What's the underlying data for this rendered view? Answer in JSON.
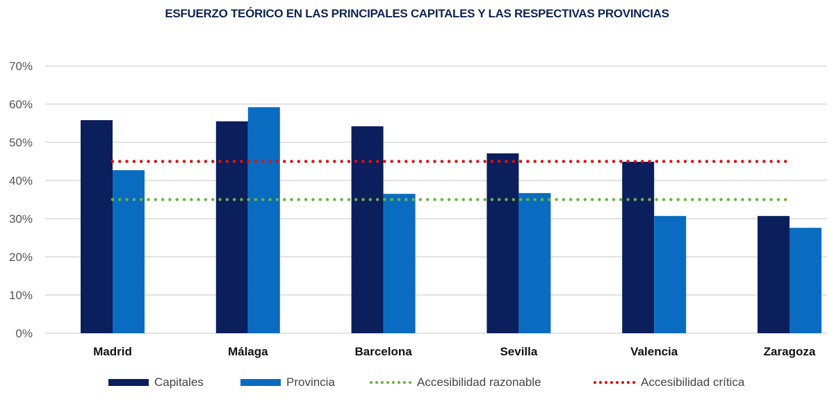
{
  "chart_data": {
    "type": "bar",
    "title": "ESFUERZO TEÓRICO EN LAS PRINCIPALES CAPITALES Y LAS RESPECTIVAS PROVINCIAS",
    "categories": [
      "Madrid",
      "Málaga",
      "Barcelona",
      "Sevilla",
      "Valencia",
      "Zaragoza"
    ],
    "series": [
      {
        "name": "Capitales",
        "values": [
          55.8,
          55.5,
          54.2,
          47.1,
          44.9,
          30.7
        ],
        "color": "#0b1f5c"
      },
      {
        "name": "Provincia",
        "values": [
          42.7,
          59.2,
          36.5,
          36.7,
          30.7,
          27.6
        ],
        "color": "#0a6cc0"
      }
    ],
    "reference_lines": [
      {
        "name": "Accesibilidad razonable",
        "value": 35,
        "color": "#6db33f",
        "style": "dotted"
      },
      {
        "name": "Accesibilidad crítica",
        "value": 45,
        "color": "#e01010",
        "style": "dotted"
      }
    ],
    "ylim": [
      0,
      70
    ],
    "yticks": [
      "0%",
      "10%",
      "20%",
      "30%",
      "40%",
      "50%",
      "60%",
      "70%"
    ],
    "grid": true,
    "legend": "bottom"
  }
}
